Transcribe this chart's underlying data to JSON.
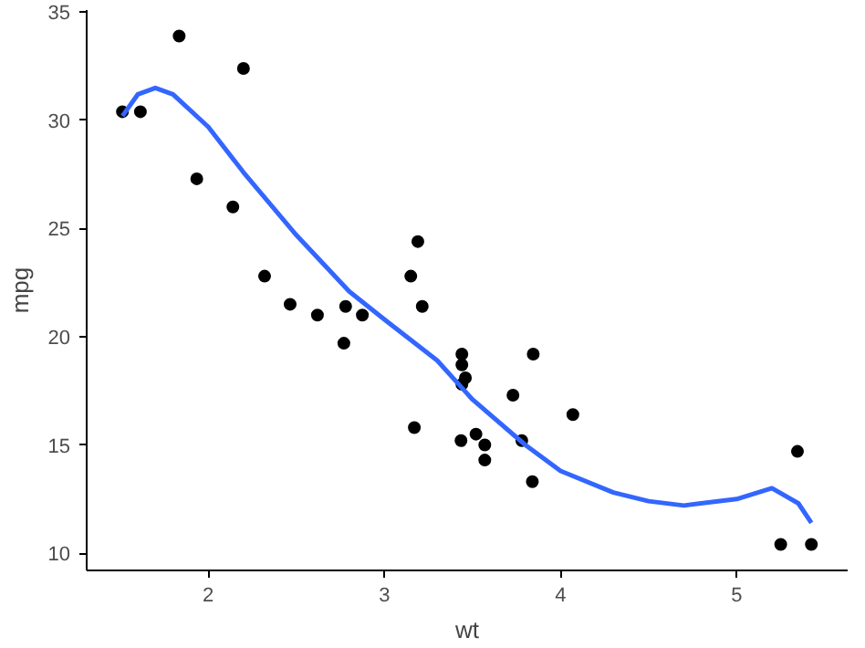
{
  "chart_data": {
    "type": "scatter",
    "xlabel": "wt",
    "ylabel": "mpg",
    "xlim": [
      1.31,
      5.63
    ],
    "ylim": [
      9.2,
      35.1
    ],
    "xticks": [
      2,
      3,
      4,
      5
    ],
    "yticks": [
      10,
      15,
      20,
      25,
      30,
      35
    ],
    "grid": false,
    "series": [
      {
        "color": "#000000",
        "marker": "circle",
        "x": [
          2.62,
          2.875,
          2.32,
          3.215,
          3.44,
          3.46,
          3.57,
          3.19,
          3.15,
          3.44,
          3.44,
          4.07,
          3.73,
          3.78,
          5.25,
          5.424,
          5.345,
          2.2,
          1.615,
          1.835,
          2.465,
          3.52,
          3.435,
          3.84,
          3.845,
          1.935,
          2.14,
          1.513,
          3.17,
          2.77,
          3.57,
          2.78
        ],
        "values": [
          21.0,
          21.0,
          22.8,
          21.4,
          18.7,
          18.1,
          14.3,
          24.4,
          22.8,
          19.2,
          17.8,
          16.4,
          17.3,
          15.2,
          10.4,
          10.4,
          14.7,
          32.4,
          30.4,
          33.9,
          21.5,
          15.5,
          15.2,
          13.3,
          19.2,
          27.3,
          26.0,
          30.4,
          15.8,
          19.7,
          15.0,
          21.4
        ]
      },
      {
        "type": "line",
        "color": "#3366ff",
        "line_style": "solid",
        "marker": "none",
        "x": [
          1.513,
          1.6,
          1.7,
          1.8,
          2.0,
          2.2,
          2.5,
          2.8,
          3.0,
          3.3,
          3.5,
          3.8,
          4.0,
          4.3,
          4.5,
          4.7,
          5.0,
          5.2,
          5.35,
          5.424
        ],
        "values": [
          30.2,
          31.2,
          31.5,
          31.2,
          29.7,
          27.6,
          24.7,
          22.1,
          20.8,
          18.9,
          17.1,
          15.0,
          13.8,
          12.8,
          12.4,
          12.2,
          12.5,
          13.0,
          12.3,
          11.4
        ]
      }
    ]
  }
}
